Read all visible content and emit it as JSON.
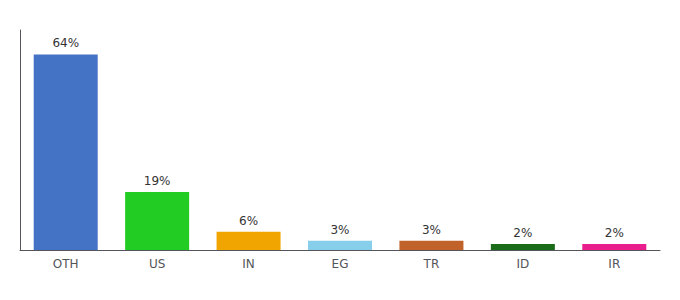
{
  "chart_data": {
    "type": "bar",
    "categories": [
      "OTH",
      "US",
      "IN",
      "EG",
      "TR",
      "ID",
      "IR"
    ],
    "values": [
      64,
      19,
      6,
      3,
      3,
      2,
      2
    ],
    "value_labels": [
      "64%",
      "19%",
      "6%",
      "3%",
      "3%",
      "2%",
      "2%"
    ],
    "colors": [
      "#4472c4",
      "#22cc22",
      "#f0a500",
      "#87ceeb",
      "#c0622a",
      "#1a6b1a",
      "#e91e8c"
    ],
    "ylim": [
      0,
      72
    ],
    "data_labels": true,
    "tick_labels": "x",
    "grid": false
  }
}
